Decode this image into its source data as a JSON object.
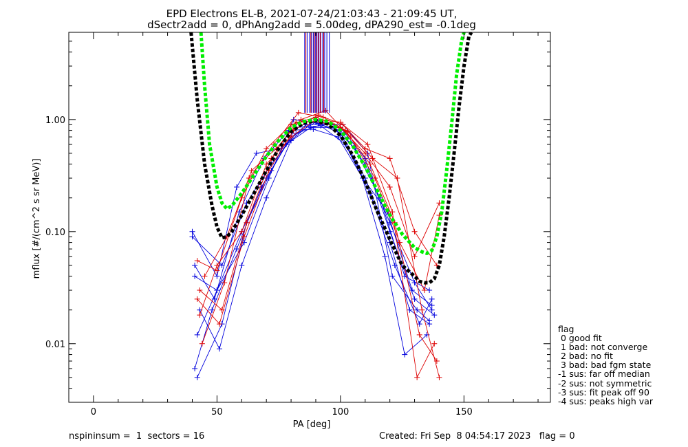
{
  "title_line1": "EPD Electrons EL-B, 2021-07-24/21:03:43 - 21:09:45 UT,",
  "title_line2": "dSectr2add = 0, dPhAng2add = 5.00deg, dPA290_est=  -0.1deg",
  "footer_left": "nspininsum =  1  sectors = 16",
  "footer_right": "Created: Fri Sep  8 04:54:17 2023   flag = 0",
  "legend": {
    "title": "flag",
    "items": [
      " 0 good fit",
      " 1 bad: not converge",
      " 2 bad: no fit",
      " 3 bad: bad fgm state",
      "-1 sus: far off median",
      "-2 sus: not symmetric",
      "-3 sus: fit peak off 90",
      "-4 sus: peaks high var"
    ]
  },
  "chart_data": {
    "type": "line",
    "xlabel": "PA [deg]",
    "ylabel": "mflux [#/(cm^2 s sr MeV)]",
    "xlim": [
      -10,
      185
    ],
    "ylim": [
      0.003,
      6.0
    ],
    "yscale": "log",
    "xticks": [
      0,
      50,
      100,
      150
    ],
    "xtick_labels": [
      "0",
      "50",
      "100",
      "150"
    ],
    "yticks": [
      0.01,
      0.1,
      1.0
    ],
    "ytick_labels": [
      "0.01",
      "0.10",
      "1.00"
    ],
    "colors": {
      "blue_traces": "#0000dd",
      "red_traces": "#dd0000",
      "fit_black": "#000000",
      "fit_green": "#00ee00"
    },
    "series": [
      {
        "color": "#0000dd",
        "x": [
          40,
          52,
          62,
          72,
          82,
          92,
          100,
          110,
          120,
          130,
          137
        ],
        "y": [
          0.09,
          0.05,
          0.18,
          0.4,
          0.75,
          0.9,
          0.8,
          0.4,
          0.12,
          0.035,
          0.02
        ]
      },
      {
        "color": "#0000dd",
        "x": [
          41,
          50,
          60,
          70,
          80,
          90,
          100,
          110,
          120,
          128,
          136
        ],
        "y": [
          0.04,
          0.03,
          0.1,
          0.3,
          0.7,
          0.95,
          0.75,
          0.3,
          0.08,
          0.02,
          0.015
        ]
      },
      {
        "color": "#0000dd",
        "x": [
          41,
          48,
          58,
          68,
          78,
          88,
          98,
          108,
          118,
          126,
          135
        ],
        "y": [
          0.006,
          0.02,
          0.07,
          0.25,
          0.6,
          0.85,
          0.85,
          0.35,
          0.06,
          0.008,
          0.012
        ]
      },
      {
        "color": "#0000dd",
        "x": [
          42,
          52,
          62,
          72,
          82,
          92,
          102,
          112,
          122,
          132,
          137
        ],
        "y": [
          0.005,
          0.015,
          0.12,
          0.35,
          0.85,
          0.88,
          0.6,
          0.22,
          0.05,
          0.015,
          0.025
        ]
      },
      {
        "color": "#0000dd",
        "x": [
          40,
          50,
          58,
          66,
          76,
          86,
          96,
          106,
          116,
          126,
          136
        ],
        "y": [
          0.1,
          0.04,
          0.25,
          0.5,
          0.55,
          0.9,
          0.9,
          0.55,
          0.2,
          0.04,
          0.03
        ]
      },
      {
        "color": "#0000dd",
        "x": [
          43,
          51,
          60,
          70,
          80,
          90,
          100,
          110,
          120,
          130,
          138
        ],
        "y": [
          0.02,
          0.009,
          0.05,
          0.2,
          0.65,
          1.0,
          0.85,
          0.45,
          0.1,
          0.025,
          0.018
        ]
      },
      {
        "color": "#0000dd",
        "x": [
          41,
          49,
          59,
          69,
          79,
          89,
          99,
          109,
          119,
          129,
          137
        ],
        "y": [
          0.05,
          0.025,
          0.15,
          0.45,
          0.8,
          0.82,
          0.7,
          0.3,
          0.15,
          0.03,
          0.022
        ]
      },
      {
        "color": "#0000dd",
        "x": [
          42,
          50,
          61,
          71,
          81,
          91,
          101,
          111,
          121,
          131,
          136
        ],
        "y": [
          0.012,
          0.03,
          0.08,
          0.3,
          1.0,
          0.92,
          0.9,
          0.5,
          0.04,
          0.02,
          0.016
        ]
      },
      {
        "color": "#dd0000",
        "x": [
          42,
          50,
          60,
          70,
          80,
          90,
          100,
          110,
          120,
          130,
          140
        ],
        "y": [
          0.055,
          0.045,
          0.2,
          0.55,
          0.9,
          1.05,
          0.85,
          0.5,
          0.25,
          0.06,
          0.18
        ]
      },
      {
        "color": "#dd0000",
        "x": [
          43,
          52,
          62,
          72,
          82,
          92,
          102,
          112,
          122,
          132,
          139
        ],
        "y": [
          0.03,
          0.02,
          0.12,
          0.45,
          0.95,
          0.95,
          0.8,
          0.4,
          0.12,
          0.012,
          0.007
        ]
      },
      {
        "color": "#dd0000",
        "x": [
          44,
          53,
          63,
          73,
          83,
          93,
          103,
          113,
          123,
          133,
          140
        ],
        "y": [
          0.01,
          0.035,
          0.3,
          0.6,
          1.15,
          1.05,
          0.78,
          0.45,
          0.3,
          0.02,
          0.005
        ]
      },
      {
        "color": "#dd0000",
        "x": [
          42,
          51,
          61,
          71,
          81,
          91,
          101,
          111,
          121,
          131,
          138
        ],
        "y": [
          0.025,
          0.015,
          0.09,
          0.35,
          0.8,
          1.1,
          0.9,
          0.6,
          0.15,
          0.005,
          0.01
        ]
      },
      {
        "color": "#dd0000",
        "x": [
          45,
          54,
          64,
          74,
          84,
          94,
          104,
          114,
          124,
          134,
          140
        ],
        "y": [
          0.04,
          0.09,
          0.35,
          0.55,
          1.0,
          1.2,
          0.7,
          0.3,
          0.08,
          0.03,
          0.14
        ]
      },
      {
        "color": "#dd0000",
        "x": [
          43,
          50,
          60,
          70,
          80,
          90,
          100,
          110,
          120,
          130,
          139
        ],
        "y": [
          0.018,
          0.05,
          0.1,
          0.4,
          0.7,
          1.0,
          0.95,
          0.55,
          0.45,
          0.1,
          0.05
        ]
      }
    ],
    "fits": [
      {
        "name": "",
        "color": "#000000",
        "style": "dashed-thick",
        "x": [
          39.5,
          42,
          45,
          48,
          50,
          52,
          54,
          56,
          60,
          65,
          70,
          75,
          80,
          85,
          90,
          95,
          100,
          105,
          110,
          115,
          120,
          125,
          130,
          132,
          134,
          136,
          138,
          140,
          142,
          144,
          146,
          148,
          150,
          152,
          153
        ],
        "y": [
          6.0,
          1.5,
          0.4,
          0.17,
          0.11,
          0.088,
          0.09,
          0.1,
          0.14,
          0.22,
          0.35,
          0.55,
          0.78,
          0.93,
          0.98,
          0.91,
          0.72,
          0.48,
          0.28,
          0.15,
          0.085,
          0.05,
          0.04,
          0.036,
          0.035,
          0.035,
          0.038,
          0.05,
          0.09,
          0.2,
          0.5,
          1.3,
          3.0,
          5.5,
          6.0
        ]
      },
      {
        "name": "",
        "color": "#00ee00",
        "style": "dashed-thick",
        "x": [
          43.5,
          45,
          47,
          50,
          52,
          54,
          56,
          60,
          65,
          70,
          75,
          80,
          85,
          90,
          95,
          100,
          105,
          110,
          115,
          120,
          125,
          130,
          133,
          135,
          137,
          139,
          141,
          143,
          145,
          147,
          149,
          150
        ],
        "y": [
          6.0,
          2.0,
          0.6,
          0.25,
          0.18,
          0.16,
          0.17,
          0.22,
          0.32,
          0.47,
          0.65,
          0.85,
          0.96,
          1.0,
          0.96,
          0.8,
          0.58,
          0.38,
          0.23,
          0.14,
          0.095,
          0.072,
          0.066,
          0.064,
          0.068,
          0.09,
          0.15,
          0.35,
          0.9,
          2.5,
          5.0,
          6.0
        ]
      }
    ],
    "vlines": [
      {
        "color": "#0000dd",
        "x": [
          85.5,
          86.5,
          87.5,
          88.3,
          89.0,
          89.8,
          90.5,
          91.3,
          92.0,
          92.8,
          93.6,
          94.5,
          95.5
        ],
        "ymin": 1.15,
        "ymax": 6.0
      },
      {
        "color": "#dd0000",
        "x": [
          86.0,
          88.0,
          89.4,
          90.2,
          91.0,
          91.8,
          93.2
        ],
        "ymin": 1.15,
        "ymax": 6.0
      }
    ]
  }
}
